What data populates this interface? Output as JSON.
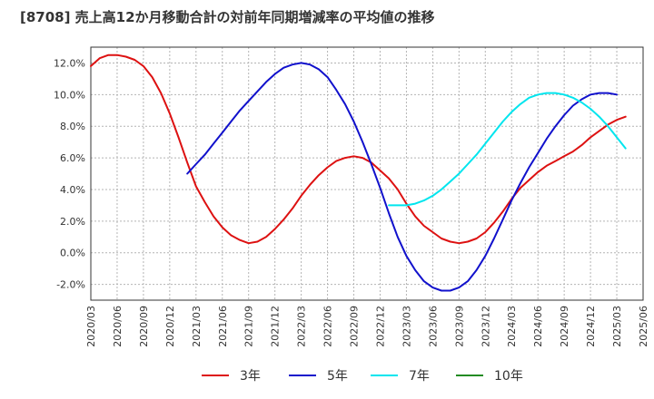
{
  "title": "[8708]  売上高12か月移動合計の対前年同期増減率の平均値の推移",
  "chart_data": {
    "type": "line",
    "title": "[8708]  売上高12か月移動合計の対前年同期増減率の平均値の推移",
    "xlabel": "",
    "ylabel": "",
    "x_ticks": [
      "2020/03",
      "2020/06",
      "2020/09",
      "2020/12",
      "2021/03",
      "2021/06",
      "2021/09",
      "2021/12",
      "2022/03",
      "2022/06",
      "2022/09",
      "2022/12",
      "2023/03",
      "2023/06",
      "2023/09",
      "2023/12",
      "2024/03",
      "2024/06",
      "2024/09",
      "2024/12",
      "2025/03",
      "2025/06"
    ],
    "y_ticks": [
      "-2.0%",
      "0.0%",
      "2.0%",
      "4.0%",
      "6.0%",
      "8.0%",
      "10.0%",
      "12.0%"
    ],
    "ylim": [
      -3.0,
      13.0
    ],
    "grid": true,
    "legend_position": "bottom",
    "series": [
      {
        "name": "3年",
        "color": "#dd1111",
        "points": [
          [
            "2020/03",
            11.8
          ],
          [
            "2020/04",
            12.3
          ],
          [
            "2020/05",
            12.5
          ],
          [
            "2020/06",
            12.5
          ],
          [
            "2020/07",
            12.4
          ],
          [
            "2020/08",
            12.2
          ],
          [
            "2020/09",
            11.8
          ],
          [
            "2020/10",
            11.1
          ],
          [
            "2020/11",
            10.1
          ],
          [
            "2020/12",
            8.8
          ],
          [
            "2021/01",
            7.3
          ],
          [
            "2021/02",
            5.7
          ],
          [
            "2021/03",
            4.2
          ],
          [
            "2021/04",
            3.2
          ],
          [
            "2021/05",
            2.3
          ],
          [
            "2021/06",
            1.6
          ],
          [
            "2021/07",
            1.1
          ],
          [
            "2021/08",
            0.8
          ],
          [
            "2021/09",
            0.6
          ],
          [
            "2021/10",
            0.7
          ],
          [
            "2021/11",
            1.0
          ],
          [
            "2021/12",
            1.5
          ],
          [
            "2022/01",
            2.1
          ],
          [
            "2022/02",
            2.8
          ],
          [
            "2022/03",
            3.6
          ],
          [
            "2022/04",
            4.3
          ],
          [
            "2022/05",
            4.9
          ],
          [
            "2022/06",
            5.4
          ],
          [
            "2022/07",
            5.8
          ],
          [
            "2022/08",
            6.0
          ],
          [
            "2022/09",
            6.1
          ],
          [
            "2022/10",
            6.0
          ],
          [
            "2022/11",
            5.7
          ],
          [
            "2022/12",
            5.2
          ],
          [
            "2023/01",
            4.7
          ],
          [
            "2023/02",
            4.0
          ],
          [
            "2023/03",
            3.1
          ],
          [
            "2023/04",
            2.3
          ],
          [
            "2023/05",
            1.7
          ],
          [
            "2023/06",
            1.3
          ],
          [
            "2023/07",
            0.9
          ],
          [
            "2023/08",
            0.7
          ],
          [
            "2023/09",
            0.6
          ],
          [
            "2023/10",
            0.7
          ],
          [
            "2023/11",
            0.9
          ],
          [
            "2023/12",
            1.3
          ],
          [
            "2024/01",
            1.9
          ],
          [
            "2024/02",
            2.6
          ],
          [
            "2024/03",
            3.4
          ],
          [
            "2024/04",
            4.1
          ],
          [
            "2024/05",
            4.6
          ],
          [
            "2024/06",
            5.1
          ],
          [
            "2024/07",
            5.5
          ],
          [
            "2024/08",
            5.8
          ],
          [
            "2024/09",
            6.1
          ],
          [
            "2024/10",
            6.4
          ],
          [
            "2024/11",
            6.8
          ],
          [
            "2024/12",
            7.3
          ],
          [
            "2025/01",
            7.7
          ],
          [
            "2025/02",
            8.1
          ],
          [
            "2025/03",
            8.4
          ],
          [
            "2025/04",
            8.6
          ]
        ]
      },
      {
        "name": "5年",
        "color": "#1111cc",
        "points": [
          [
            "2021/02",
            5.0
          ],
          [
            "2021/03",
            5.6
          ],
          [
            "2021/04",
            6.2
          ],
          [
            "2021/05",
            6.9
          ],
          [
            "2021/06",
            7.6
          ],
          [
            "2021/07",
            8.3
          ],
          [
            "2021/08",
            9.0
          ],
          [
            "2021/09",
            9.6
          ],
          [
            "2021/10",
            10.2
          ],
          [
            "2021/11",
            10.8
          ],
          [
            "2021/12",
            11.3
          ],
          [
            "2022/01",
            11.7
          ],
          [
            "2022/02",
            11.9
          ],
          [
            "2022/03",
            12.0
          ],
          [
            "2022/04",
            11.9
          ],
          [
            "2022/05",
            11.6
          ],
          [
            "2022/06",
            11.1
          ],
          [
            "2022/07",
            10.3
          ],
          [
            "2022/08",
            9.4
          ],
          [
            "2022/09",
            8.3
          ],
          [
            "2022/10",
            7.0
          ],
          [
            "2022/11",
            5.6
          ],
          [
            "2022/12",
            4.1
          ],
          [
            "2023/01",
            2.5
          ],
          [
            "2023/02",
            1.0
          ],
          [
            "2023/03",
            -0.2
          ],
          [
            "2023/04",
            -1.1
          ],
          [
            "2023/05",
            -1.8
          ],
          [
            "2023/06",
            -2.2
          ],
          [
            "2023/07",
            -2.4
          ],
          [
            "2023/08",
            -2.4
          ],
          [
            "2023/09",
            -2.2
          ],
          [
            "2023/10",
            -1.8
          ],
          [
            "2023/11",
            -1.1
          ],
          [
            "2023/12",
            -0.2
          ],
          [
            "2024/01",
            0.9
          ],
          [
            "2024/02",
            2.1
          ],
          [
            "2024/03",
            3.3
          ],
          [
            "2024/04",
            4.4
          ],
          [
            "2024/05",
            5.4
          ],
          [
            "2024/06",
            6.3
          ],
          [
            "2024/07",
            7.2
          ],
          [
            "2024/08",
            8.0
          ],
          [
            "2024/09",
            8.7
          ],
          [
            "2024/10",
            9.3
          ],
          [
            "2024/11",
            9.7
          ],
          [
            "2024/12",
            10.0
          ],
          [
            "2025/01",
            10.1
          ],
          [
            "2025/02",
            10.1
          ],
          [
            "2025/03",
            10.0
          ]
        ]
      },
      {
        "name": "7年",
        "color": "#00e5ee",
        "points": [
          [
            "2023/01",
            3.0
          ],
          [
            "2023/02",
            3.0
          ],
          [
            "2023/03",
            3.0
          ],
          [
            "2023/04",
            3.1
          ],
          [
            "2023/05",
            3.3
          ],
          [
            "2023/06",
            3.6
          ],
          [
            "2023/07",
            4.0
          ],
          [
            "2023/08",
            4.5
          ],
          [
            "2023/09",
            5.0
          ],
          [
            "2023/10",
            5.6
          ],
          [
            "2023/11",
            6.2
          ],
          [
            "2023/12",
            6.9
          ],
          [
            "2024/01",
            7.6
          ],
          [
            "2024/02",
            8.3
          ],
          [
            "2024/03",
            8.9
          ],
          [
            "2024/04",
            9.4
          ],
          [
            "2024/05",
            9.8
          ],
          [
            "2024/06",
            10.0
          ],
          [
            "2024/07",
            10.1
          ],
          [
            "2024/08",
            10.1
          ],
          [
            "2024/09",
            10.0
          ],
          [
            "2024/10",
            9.8
          ],
          [
            "2024/11",
            9.5
          ],
          [
            "2024/12",
            9.1
          ],
          [
            "2025/01",
            8.6
          ],
          [
            "2025/02",
            8.0
          ],
          [
            "2025/03",
            7.3
          ],
          [
            "2025/04",
            6.6
          ]
        ]
      },
      {
        "name": "10年",
        "color": "#228b22",
        "points": []
      }
    ]
  }
}
